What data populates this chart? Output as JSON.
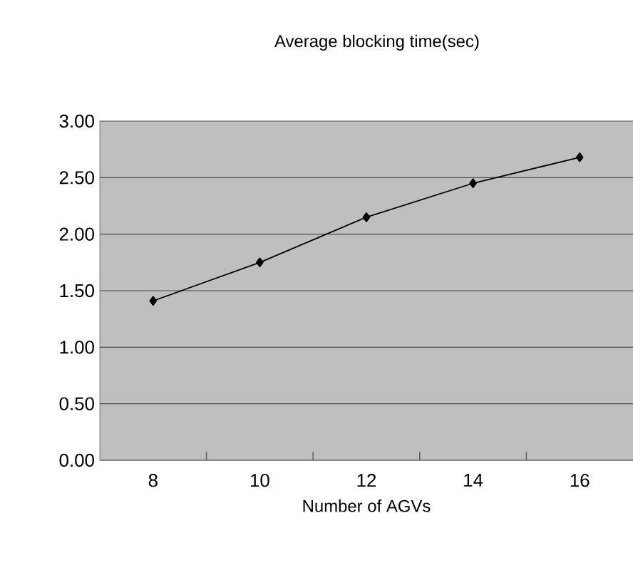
{
  "chart_data": {
    "type": "line",
    "title": "Average blocking time(sec)",
    "xlabel": "Number of AGVs",
    "categories": [
      "8",
      "10",
      "12",
      "14",
      "16"
    ],
    "series": [
      {
        "color": "#000000",
        "values": [
          1.41,
          1.75,
          2.15,
          2.45,
          2.68
        ]
      }
    ],
    "ylim": [
      0,
      3
    ],
    "yticks": [
      {
        "value": 0,
        "label": "0.00"
      },
      {
        "value": 0.5,
        "label": "0.50"
      },
      {
        "value": 1,
        "label": "1.00"
      },
      {
        "value": 1.5,
        "label": "1.50"
      },
      {
        "value": 2,
        "label": "2.00"
      },
      {
        "value": 2.5,
        "label": "2.50"
      },
      {
        "value": 3,
        "label": "3.00"
      }
    ],
    "grid": "y",
    "marker": "diamond",
    "line_style": "solid"
  }
}
